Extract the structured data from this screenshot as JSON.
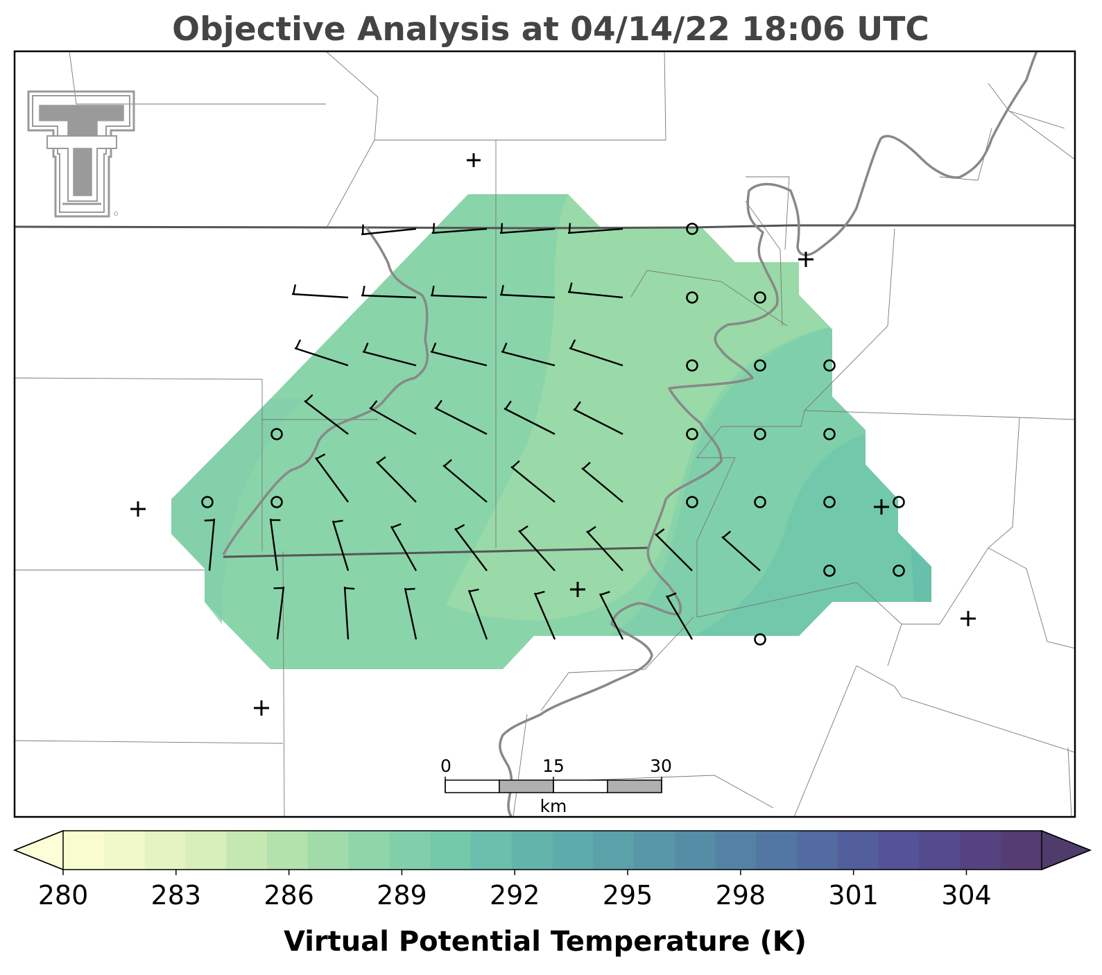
{
  "title": "Objective Analysis at 04/14/22 18:06 UTC",
  "colorbar": {
    "label": "Virtual Potential Temperature (K)",
    "ticks": [
      "280",
      "283",
      "286",
      "289",
      "292",
      "295",
      "298",
      "301",
      "304"
    ],
    "min": 280,
    "max": 306,
    "extend": "both",
    "colors": [
      "#f8fccf",
      "#f1f9c8",
      "#e4f3c0",
      "#d6efbb",
      "#c5e8b3",
      "#b3e2ad",
      "#a1dba9",
      "#90d5a9",
      "#81cfaa",
      "#74c9ab",
      "#6bbfac",
      "#63b5ac",
      "#5eabab",
      "#5aa1aa",
      "#5797a8",
      "#558ca6",
      "#5382a4",
      "#5277a2",
      "#526ba0",
      "#535e9d",
      "#545298",
      "#544a8d",
      "#544380",
      "#543d72"
    ],
    "under_color": "#fcfed8",
    "over_color": "#4f3c6c"
  },
  "scale_bar": {
    "labels": [
      "0",
      "15",
      "30"
    ],
    "unit": "km"
  },
  "field": {
    "variable": "virtual potential temperature",
    "units": "K",
    "region_fill": "#8ad4aa",
    "warm_band_fill": "#99daa8",
    "east_cooler_fill": "#80cfab",
    "east_edge_fill": "#72c8ab",
    "far_east_fill": "#68c0aa"
  },
  "station_markers": {
    "missing_symbol": "+",
    "calm_symbol": "circle"
  },
  "logo": {
    "alt": "texas-tech-double-t-logo"
  }
}
